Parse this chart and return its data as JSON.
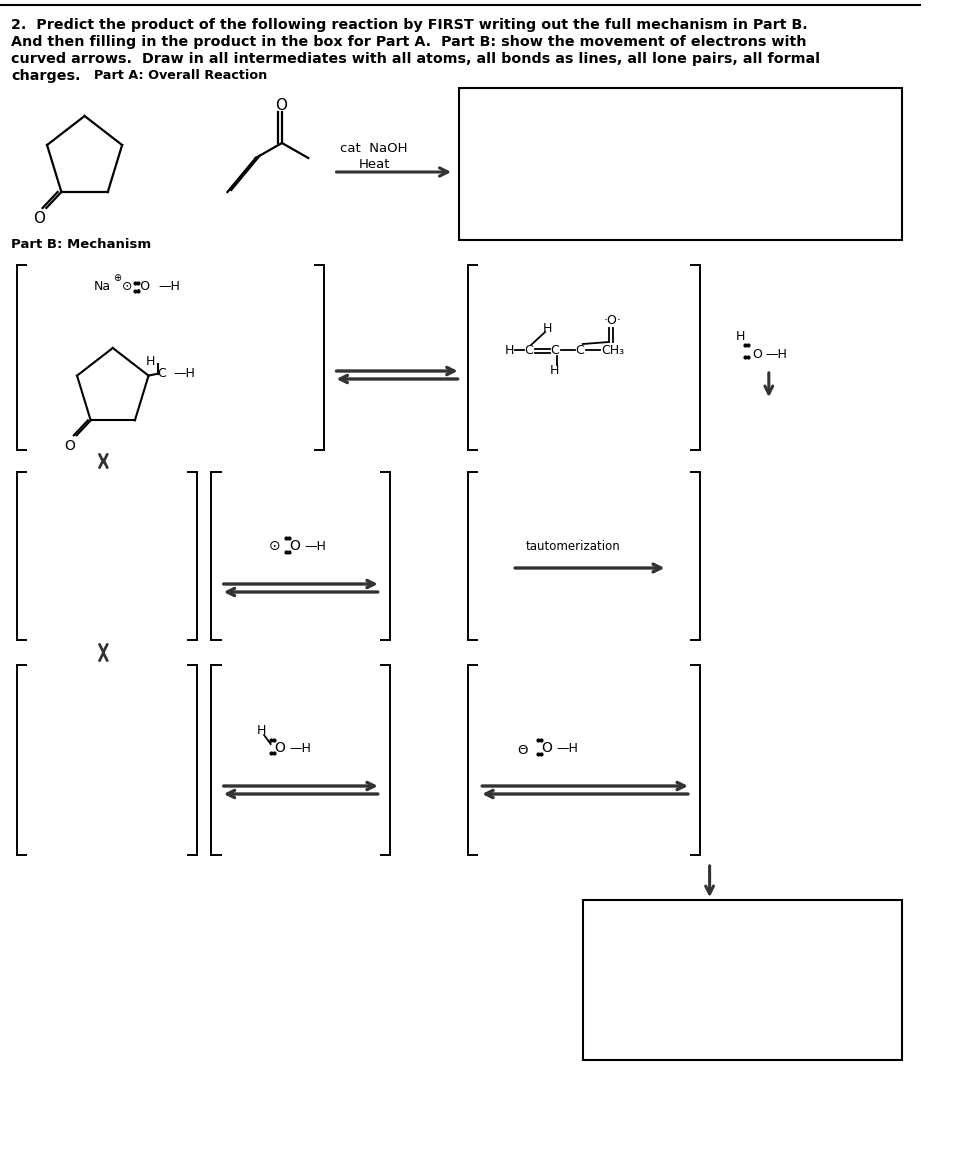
{
  "bg_color": "#ffffff",
  "text_color": "#000000",
  "line_color": "#000000",
  "title_lines": [
    "2.  Predict the product of the following reaction by FIRST writing out the full mechanism in Part B.",
    "And then filling in the product in the box for Part A.  Part B: show the movement of electrons with",
    "curved arrows.  Draw in all intermediates with all atoms, all bonds as lines, all lone pairs, all formal",
    "charges."
  ],
  "part_a_label": "Part A: Overall Reaction",
  "part_b_label": "Part B: Mechanism",
  "cat_naoh": "cat  NaOH",
  "heat": "Heat",
  "tautomerization": "tautomerization"
}
